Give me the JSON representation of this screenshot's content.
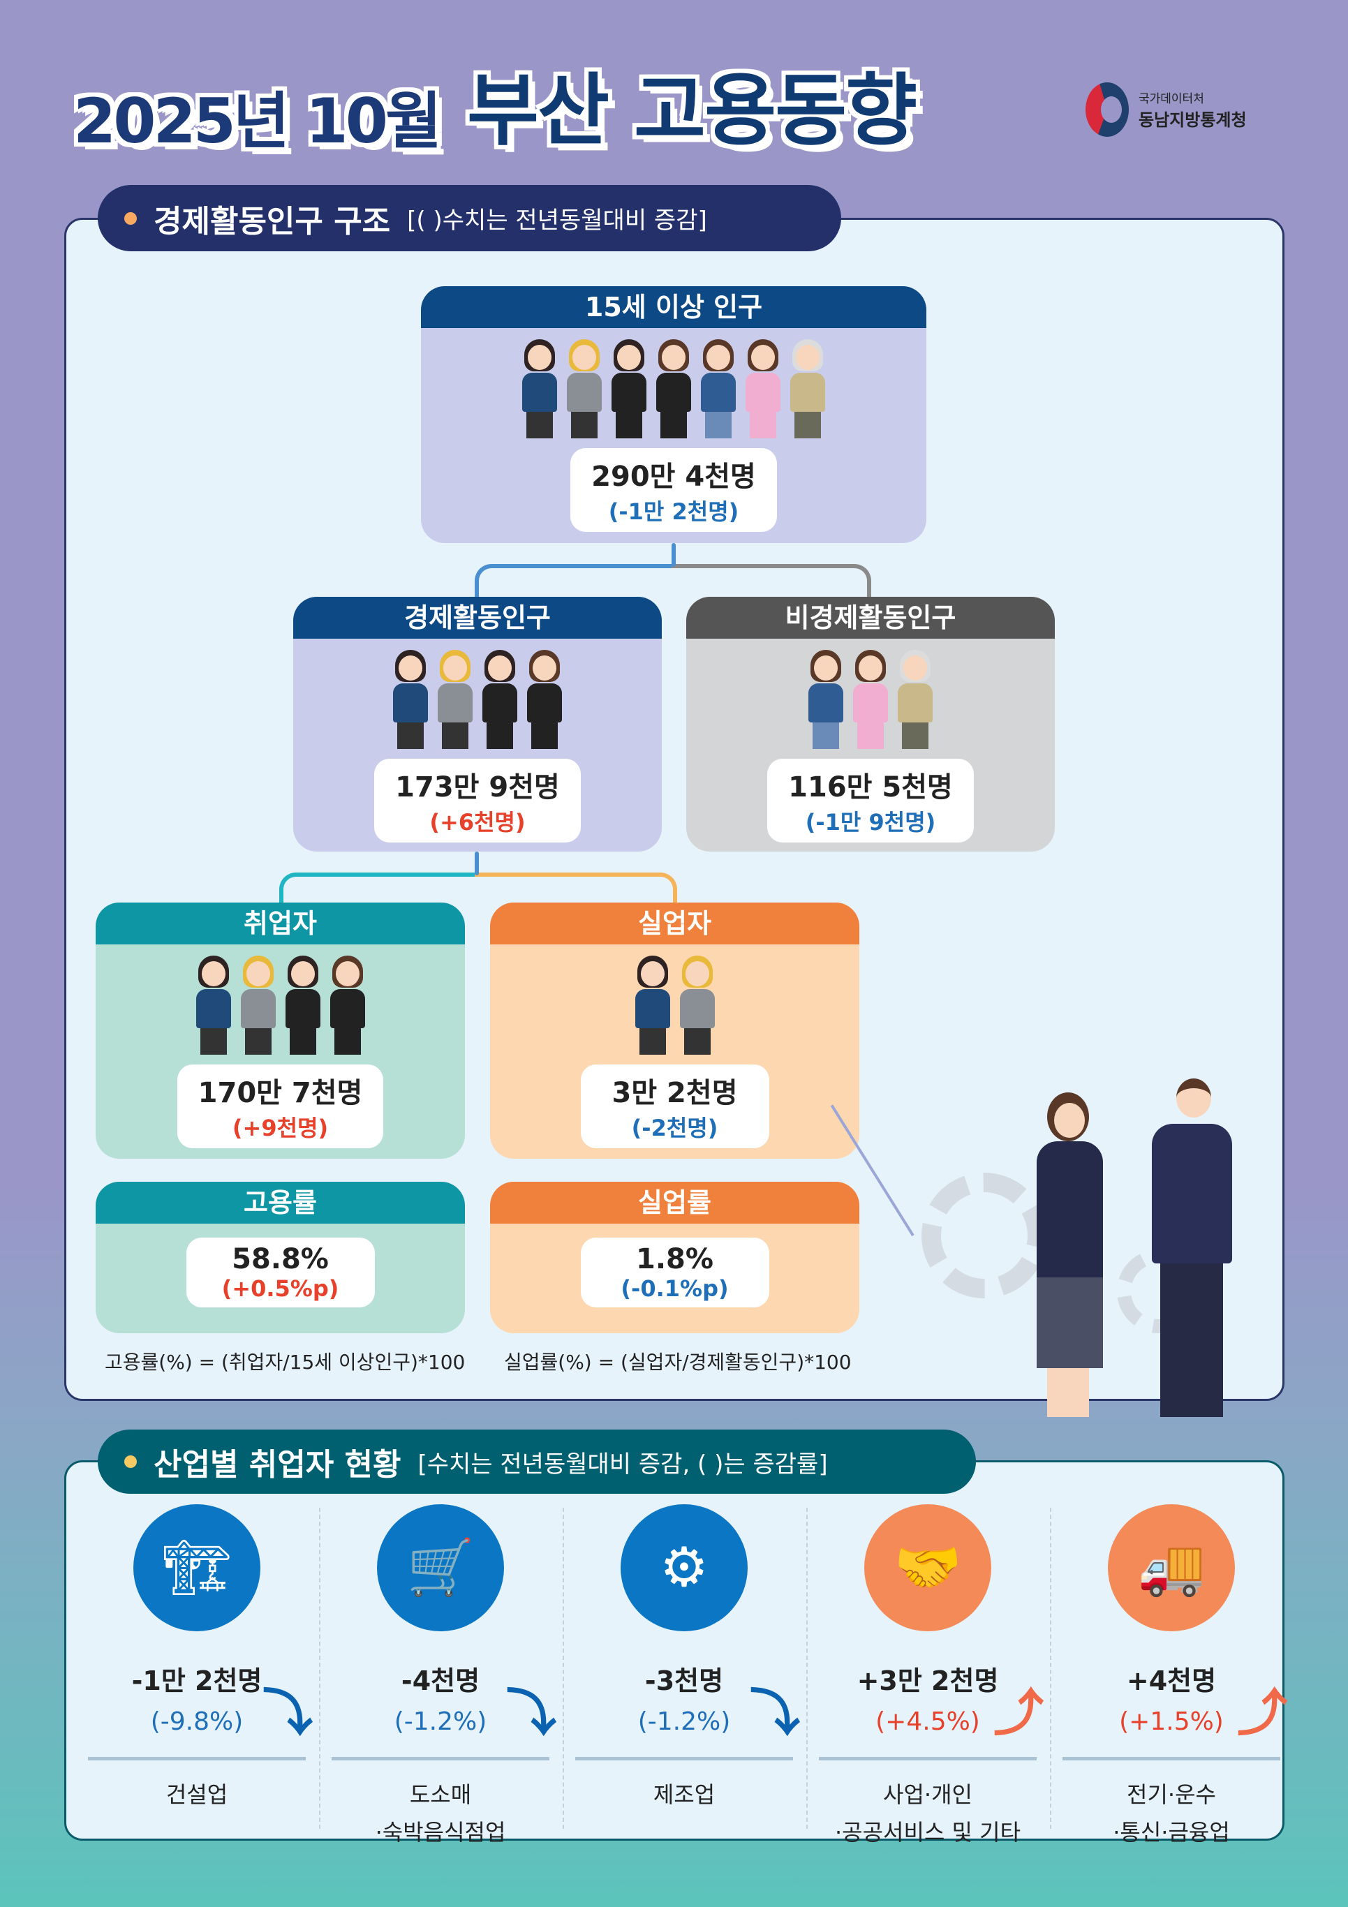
{
  "header": {
    "title_date": "2025년 10월",
    "title_main": "부산 고용동향",
    "org_top": "국가데이터처",
    "org_name": "동남지방통계청"
  },
  "section1": {
    "title": "경제활동인구 구조",
    "subtitle": "[( )수치는 전년동월대비 증감]",
    "population": {
      "label": "15세 이상 인구",
      "value": "290만 4천명",
      "change": "(-1만 2천명)"
    },
    "active": {
      "label": "경제활동인구",
      "value": "173만 9천명",
      "change": "(+6천명)"
    },
    "inactive": {
      "label": "비경제활동인구",
      "value": "116만 5천명",
      "change": "(-1만 9천명)"
    },
    "employed": {
      "label": "취업자",
      "value": "170만 7천명",
      "change": "(+9천명)"
    },
    "unemployed": {
      "label": "실업자",
      "value": "3만 2천명",
      "change": "(-2천명)"
    },
    "employment_rate": {
      "label": "고용률",
      "value": "58.8%",
      "change": "(+0.5%p)",
      "formula": "고용률(%) = (취업자/15세 이상인구)*100"
    },
    "unemployment_rate": {
      "label": "실업률",
      "value": "1.8%",
      "change": "(-0.1%p)",
      "formula": "실업률(%) = (실업자/경제활동인구)*100"
    }
  },
  "section2": {
    "title": "산업별 취업자 현황",
    "subtitle": "[수치는 전년동월대비 증감, (   )는 증감률]",
    "industries": [
      {
        "value": "-1만 2천명",
        "rate": "(-9.8%)",
        "trend": "down",
        "label1": "건설업",
        "label2": "",
        "icon": "construction-crane-icon"
      },
      {
        "value": "-4천명",
        "rate": "(-1.2%)",
        "trend": "down",
        "label1": "도소매",
        "label2": "·숙박음식점업",
        "icon": "shopping-cart-chef-icon"
      },
      {
        "value": "-3천명",
        "rate": "(-1.2%)",
        "trend": "down",
        "label1": "제조업",
        "label2": "",
        "icon": "factory-robot-arm-icon"
      },
      {
        "value": "+3만 2천명",
        "rate": "(+4.5%)",
        "trend": "up",
        "label1": "사업·개인",
        "label2": "·공공서비스 및 기타",
        "icon": "handshake-briefcase-icon"
      },
      {
        "value": "+4천명",
        "rate": "(+1.5%)",
        "trend": "up",
        "label1": "전기·운수",
        "label2": "·통신·금융업",
        "icon": "truck-coins-icon"
      }
    ]
  },
  "colors": {
    "navy": "#0d4a85",
    "gray_header": "#555555",
    "teal": "#0f96a5",
    "orange": "#f0813c",
    "increase": "#e8412b",
    "decrease": "#1f6fb8"
  }
}
